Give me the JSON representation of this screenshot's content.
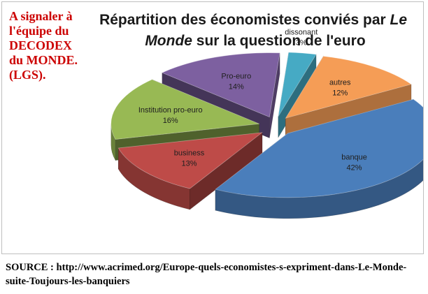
{
  "annotation": "A signaler à\nl'équipe du\nDECODEX\ndu MONDE.\n(LGS).",
  "source": "SOURCE : http://www.acrimed.org/Europe-quels-economistes-s-expriment-dans-Le-Monde-suite-Toujours-les-banquiers",
  "chart_data": {
    "type": "pie",
    "title_parts": [
      {
        "text": "Répartition des économistes conviés par ",
        "italic": false
      },
      {
        "text": "Le",
        "italic": true
      },
      {
        "text": "Monde",
        "italic": true
      },
      {
        "text": " sur la question de l'euro",
        "italic": false
      }
    ],
    "slices": [
      {
        "label": "banque",
        "value": 42,
        "value_label": "42%",
        "color": "#4a7ebb"
      },
      {
        "label": "business",
        "value": 13,
        "value_label": "13%",
        "color": "#be4b48"
      },
      {
        "label": "Institution pro-euro",
        "value": 16,
        "value_label": "16%",
        "color": "#98b954"
      },
      {
        "label": "Pro-euro",
        "value": 14,
        "value_label": "14%",
        "color": "#7d60a0"
      },
      {
        "label": "dissonant",
        "value": 3,
        "value_label": "3%",
        "color": "#46aac4"
      },
      {
        "label": "autres",
        "value": 12,
        "value_label": "12%",
        "color": "#f59d56"
      }
    ],
    "style": "exploded 3D pie"
  }
}
